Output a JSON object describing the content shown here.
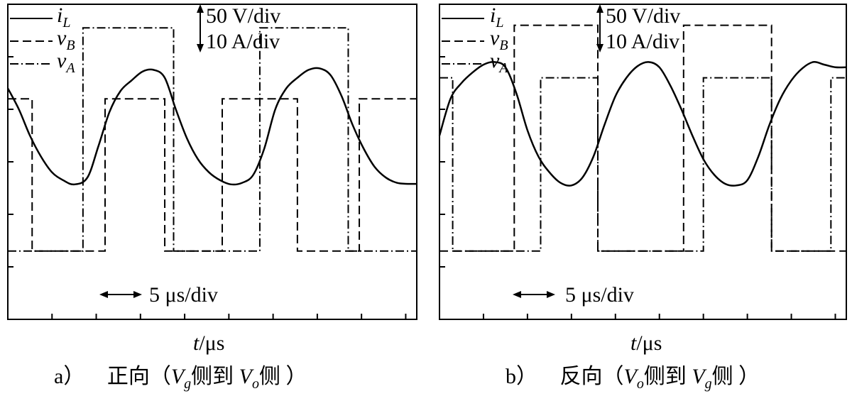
{
  "chart_data": [
    {
      "type": "line",
      "caption": {
        "letter": "a）",
        "prefix": "正向（",
        "v1": "V",
        "v1_sub": "g",
        "middle": "侧到 ",
        "v2": "V",
        "v2_sub": "o",
        "suffix": "侧 ）"
      },
      "xlabel": "t",
      "xunit": "/μs",
      "scales": {
        "voltage": "50 V/div",
        "current": "10 A/div",
        "time": "5 μs/div"
      },
      "legend": [
        {
          "name": "i",
          "sub": "L",
          "style": "solid"
        },
        {
          "name": "v",
          "sub": "B",
          "style": "dashed"
        },
        {
          "name": "v",
          "sub": "A",
          "style": "dashdot"
        }
      ],
      "series": [
        {
          "name": "vB",
          "style": "dashed",
          "x": [
            0,
            0.55,
            0.55,
            2.2,
            2.2,
            3.55,
            3.55,
            4.85,
            4.85,
            6.55,
            6.55,
            7.95,
            7.95,
            9.25
          ],
          "y": [
            1.2,
            1.2,
            -1.7,
            -1.7,
            1.2,
            1.2,
            -1.7,
            -1.7,
            1.2,
            1.2,
            -1.7,
            -1.7,
            1.2,
            1.2
          ]
        },
        {
          "name": "vA",
          "style": "dashdot",
          "x": [
            0,
            1.7,
            1.7,
            3.75,
            3.75,
            5.7,
            5.7,
            7.7,
            7.7,
            9.25
          ],
          "y": [
            -1.7,
            -1.7,
            2.55,
            2.55,
            -1.7,
            -1.7,
            2.55,
            2.55,
            -1.7,
            -1.7
          ]
        },
        {
          "name": "iL",
          "style": "solid",
          "x": [
            0,
            0.25,
            0.5,
            0.75,
            1.0,
            1.25,
            1.5,
            1.8,
            2.05,
            2.3,
            2.55,
            2.8,
            3.05,
            3.3,
            3.55,
            3.8,
            4.05,
            4.3,
            4.55,
            4.8,
            5.05,
            5.3,
            5.55,
            5.8,
            6.05,
            6.3,
            6.55,
            6.8,
            7.05,
            7.3,
            7.55,
            7.8,
            8.05,
            8.3,
            8.55,
            8.8,
            9.05,
            9.25
          ],
          "y": [
            1.4,
            1.0,
            0.5,
            0.1,
            -0.2,
            -0.35,
            -0.43,
            -0.3,
            0.3,
            0.95,
            1.35,
            1.55,
            1.72,
            1.75,
            1.6,
            1.0,
            0.45,
            0.05,
            -0.2,
            -0.35,
            -0.43,
            -0.4,
            -0.25,
            0.25,
            1.0,
            1.4,
            1.6,
            1.75,
            1.78,
            1.65,
            1.25,
            0.7,
            0.25,
            -0.1,
            -0.3,
            -0.4,
            -0.42,
            -0.42
          ]
        }
      ]
    },
    {
      "type": "line",
      "caption": {
        "letter": "b）",
        "prefix": "反向（",
        "v1": "V",
        "v1_sub": "o",
        "middle": "侧到 ",
        "v2": "V",
        "v2_sub": "g",
        "suffix": "侧 ）"
      },
      "xlabel": "t",
      "xunit": "/μs",
      "scales": {
        "voltage": "50 V/div",
        "current": "10 A/div",
        "time": "5 μs/div"
      },
      "legend": [
        {
          "name": "i",
          "sub": "L",
          "style": "solid"
        },
        {
          "name": "v",
          "sub": "B",
          "style": "dashed"
        },
        {
          "name": "v",
          "sub": "A",
          "style": "dashdot"
        }
      ],
      "series": [
        {
          "name": "vB",
          "style": "dashed",
          "x": [
            0,
            1.7,
            1.7,
            3.6,
            3.6,
            5.55,
            5.55,
            7.55,
            7.55,
            9.25
          ],
          "y": [
            -1.7,
            -1.7,
            2.6,
            2.6,
            -1.7,
            -1.7,
            2.6,
            2.6,
            -1.7,
            -1.7
          ]
        },
        {
          "name": "vA",
          "style": "dashdot",
          "x": [
            0,
            0.3,
            0.3,
            2.3,
            2.3,
            3.6,
            3.6,
            6.0,
            6.0,
            7.55,
            7.55,
            8.9,
            8.9,
            9.25
          ],
          "y": [
            1.6,
            1.6,
            -1.7,
            -1.7,
            1.6,
            1.6,
            -1.7,
            -1.7,
            1.6,
            1.6,
            -1.7,
            -1.7,
            1.6,
            1.6
          ]
        },
        {
          "name": "iL",
          "style": "solid",
          "x": [
            0,
            0.25,
            0.5,
            0.75,
            1.0,
            1.25,
            1.5,
            1.75,
            2.0,
            2.25,
            2.5,
            2.75,
            3.0,
            3.25,
            3.5,
            3.75,
            4.0,
            4.25,
            4.5,
            4.75,
            5.0,
            5.25,
            5.5,
            5.75,
            6.0,
            6.25,
            6.5,
            6.75,
            7.0,
            7.25,
            7.5,
            7.75,
            8.0,
            8.25,
            8.5,
            8.75,
            9.0,
            9.25
          ],
          "y": [
            0.5,
            1.2,
            1.5,
            1.7,
            1.85,
            1.9,
            1.8,
            1.3,
            0.6,
            0.1,
            -0.2,
            -0.4,
            -0.45,
            -0.3,
            0.1,
            0.7,
            1.25,
            1.6,
            1.82,
            1.9,
            1.8,
            1.45,
            1.0,
            0.5,
            0.05,
            -0.25,
            -0.42,
            -0.45,
            -0.35,
            0.1,
            0.7,
            1.2,
            1.55,
            1.78,
            1.9,
            1.85,
            1.8,
            1.8
          ]
        }
      ]
    }
  ]
}
